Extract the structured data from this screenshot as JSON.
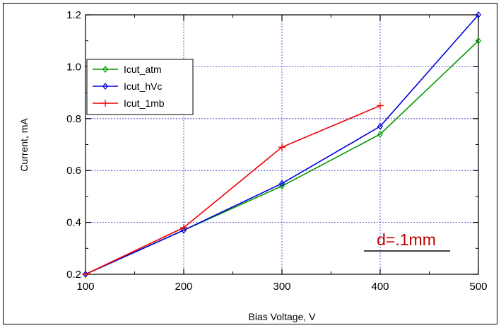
{
  "chart_data": {
    "type": "line",
    "title": "",
    "xlabel": "Bias Voltage, V",
    "ylabel": "Current, mA",
    "xlim": [
      100,
      500
    ],
    "ylim": [
      0.2,
      1.2
    ],
    "x_ticks": [
      "100",
      "200",
      "300",
      "400",
      "500"
    ],
    "y_ticks": [
      "0.2",
      "0.4",
      "0.6",
      "0.8",
      "1.0",
      "1.2"
    ],
    "grid": true,
    "legend_position": "top-left",
    "series": [
      {
        "name": "Icut_atm",
        "color": "#009900",
        "marker": "diamond",
        "x": [
          100,
          200,
          300,
          400,
          500
        ],
        "y": [
          0.2,
          0.37,
          0.54,
          0.74,
          1.1
        ]
      },
      {
        "name": "Icut_hVc",
        "color": "#0000dd",
        "marker": "diamond",
        "x": [
          100,
          200,
          300,
          400,
          500
        ],
        "y": [
          0.2,
          0.37,
          0.55,
          0.77,
          1.2
        ]
      },
      {
        "name": "Icut_1mb",
        "color": "#ee0000",
        "marker": "plus",
        "x": [
          100,
          200,
          300,
          400
        ],
        "y": [
          0.2,
          0.38,
          0.69,
          0.85
        ]
      }
    ],
    "annotation": {
      "text": "d=.1mm",
      "color": "#bb0000",
      "underline": true
    }
  }
}
